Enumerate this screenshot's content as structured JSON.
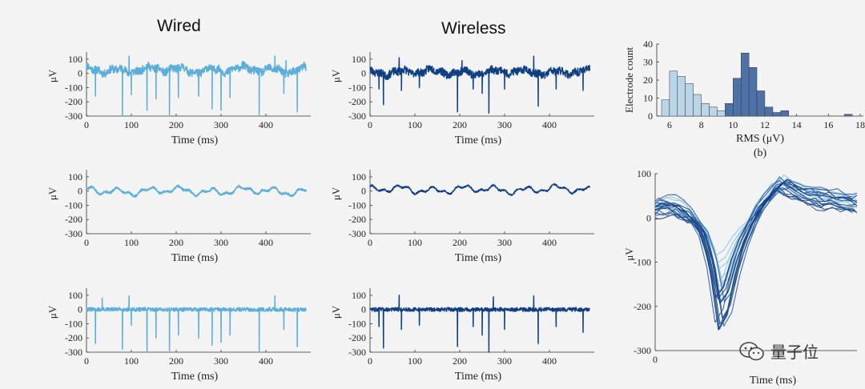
{
  "titles": {
    "wired": "Wired",
    "wireless": "Wireless"
  },
  "colors": {
    "wired": "#5aaed8",
    "wireless": "#0e3f82",
    "hist_light": "#b9d5e6",
    "hist_dark": "#4f72a6",
    "bg": "#f3f3f3"
  },
  "watermark": {
    "text": "量子位",
    "icon": "wechat-icon"
  },
  "chart_data": [
    {
      "id": "wired-raw",
      "type": "line",
      "xlabel": "Time (ms)",
      "ylabel": "μV",
      "xlim": [
        0,
        500
      ],
      "ylim": [
        -300,
        150
      ],
      "xticks": [
        "0",
        "100",
        "200",
        "300",
        "400"
      ],
      "yticks": [
        "100",
        "0",
        "-100",
        "-200",
        "-300"
      ],
      "seed": 11,
      "noise": 28,
      "wave": 30,
      "baseline": 25,
      "spikes": [
        [
          20,
          -160
        ],
        [
          80,
          -300
        ],
        [
          100,
          -150
        ],
        [
          135,
          -260
        ],
        [
          155,
          -180
        ],
        [
          185,
          -290
        ],
        [
          205,
          -170
        ],
        [
          250,
          -160
        ],
        [
          280,
          -250
        ],
        [
          300,
          -260
        ],
        [
          320,
          -170
        ],
        [
          385,
          -290
        ],
        [
          440,
          -140
        ],
        [
          470,
          -270
        ]
      ],
      "upspikes": [
        [
          95,
          120
        ],
        [
          420,
          120
        ],
        [
          445,
          90
        ]
      ]
    },
    {
      "id": "wireless-raw",
      "type": "line",
      "xlabel": "Time (ms)",
      "ylabel": "μV",
      "xlim": [
        0,
        500
      ],
      "ylim": [
        -300,
        150
      ],
      "xticks": [
        "0",
        "100",
        "200",
        "300",
        "400"
      ],
      "yticks": [
        "100",
        "0",
        "-100",
        "-200",
        "-300"
      ],
      "seed": 23,
      "noise": 28,
      "wave": 26,
      "baseline": 10,
      "spikes": [
        [
          20,
          -110
        ],
        [
          30,
          -220
        ],
        [
          70,
          -120
        ],
        [
          110,
          -100
        ],
        [
          195,
          -270
        ],
        [
          230,
          -110
        ],
        [
          250,
          -140
        ],
        [
          265,
          -280
        ],
        [
          300,
          -110
        ],
        [
          375,
          -230
        ],
        [
          415,
          -110
        ],
        [
          475,
          -120
        ]
      ],
      "upspikes": [
        [
          65,
          110
        ],
        [
          205,
          90
        ],
        [
          365,
          120
        ]
      ]
    },
    {
      "id": "wired-lfp",
      "type": "line",
      "xlabel": "Time (ms)",
      "ylabel": "μV",
      "xlim": [
        0,
        500
      ],
      "ylim": [
        -300,
        150
      ],
      "xticks": [
        "0",
        "100",
        "200",
        "300",
        "400"
      ],
      "yticks": [
        "100",
        "0",
        "-100",
        "-200",
        "-300"
      ],
      "seed": 5,
      "noise": 8,
      "wave": 35,
      "baseline": 0,
      "spikes": [],
      "upspikes": []
    },
    {
      "id": "wireless-lfp",
      "type": "line",
      "xlabel": "Time (ms)",
      "ylabel": "μV",
      "xlim": [
        0,
        500
      ],
      "ylim": [
        -300,
        150
      ],
      "xticks": [
        "0",
        "100",
        "200",
        "300",
        "400"
      ],
      "yticks": [
        "100",
        "0",
        "-100",
        "-200",
        "-300"
      ],
      "seed": 9,
      "noise": 6,
      "wave": 35,
      "baseline": 10,
      "spikes": [],
      "upspikes": []
    },
    {
      "id": "wired-spikes",
      "type": "line",
      "xlabel": "Time (ms)",
      "ylabel": "μV",
      "xlim": [
        0,
        500
      ],
      "ylim": [
        -300,
        150
      ],
      "xticks": [
        "0",
        "100",
        "200",
        "300",
        "400"
      ],
      "yticks": [
        "100",
        "0",
        "-100",
        "-200",
        "-300"
      ],
      "seed": 31,
      "noise": 14,
      "wave": 0,
      "baseline": 0,
      "spikes": [
        [
          20,
          -240
        ],
        [
          80,
          -280
        ],
        [
          100,
          -110
        ],
        [
          135,
          -300
        ],
        [
          155,
          -200
        ],
        [
          185,
          -290
        ],
        [
          205,
          -180
        ],
        [
          250,
          -200
        ],
        [
          280,
          -250
        ],
        [
          300,
          -230
        ],
        [
          320,
          -180
        ],
        [
          385,
          -300
        ],
        [
          440,
          -140
        ],
        [
          470,
          -260
        ]
      ],
      "upspikes": [
        [
          35,
          80
        ],
        [
          95,
          95
        ],
        [
          420,
          95
        ]
      ]
    },
    {
      "id": "wireless-spikes",
      "type": "line",
      "xlabel": "Time (ms)",
      "ylabel": "μV",
      "xlim": [
        0,
        500
      ],
      "ylim": [
        -300,
        150
      ],
      "xticks": [
        "0",
        "100",
        "200",
        "300",
        "400"
      ],
      "yticks": [
        "100",
        "0",
        "-100",
        "-200",
        "-300"
      ],
      "seed": 47,
      "noise": 14,
      "wave": 0,
      "baseline": 0,
      "spikes": [
        [
          20,
          -120
        ],
        [
          30,
          -270
        ],
        [
          70,
          -140
        ],
        [
          110,
          -110
        ],
        [
          195,
          -260
        ],
        [
          230,
          -120
        ],
        [
          250,
          -180
        ],
        [
          265,
          -300
        ],
        [
          300,
          -140
        ],
        [
          375,
          -240
        ],
        [
          415,
          -120
        ],
        [
          475,
          -160
        ]
      ],
      "upspikes": [
        [
          65,
          100
        ],
        [
          275,
          90
        ],
        [
          365,
          95
        ]
      ]
    },
    {
      "id": "rms-histogram",
      "type": "bar",
      "xlabel": "RMS (μV)",
      "ylabel": "Electrode count",
      "caption": "(b)",
      "xlim": [
        5.2,
        18.2
      ],
      "ylim": [
        0,
        40
      ],
      "xticks": [
        "6",
        "8",
        "10",
        "12",
        "14",
        "16",
        "18"
      ],
      "yticks": [
        "40",
        "30",
        "20",
        "10",
        "0"
      ],
      "series": [
        {
          "name": "wired",
          "bin_width": 0.5,
          "x": [
            5.75,
            6.25,
            6.75,
            7.25,
            7.75,
            8.25,
            8.75,
            9.25,
            9.75
          ],
          "values": [
            9,
            25,
            22,
            18,
            12,
            7,
            5,
            3,
            1
          ]
        },
        {
          "name": "wireless",
          "bin_width": 0.5,
          "x": [
            9.75,
            10.25,
            10.75,
            11.25,
            11.75,
            12.25,
            12.75,
            13.25,
            17.25
          ],
          "values": [
            7,
            21,
            35,
            27,
            14,
            5,
            2,
            3,
            1
          ]
        }
      ]
    },
    {
      "id": "spike-waveforms",
      "type": "line",
      "xlabel": "Time (ms)",
      "ylabel": "μV",
      "xlim": [
        0,
        2.5
      ],
      "ylim": [
        -300,
        100
      ],
      "xticks": [
        "0"
      ],
      "yticks": [
        "100",
        "0",
        "-100",
        "-200",
        "-300"
      ],
      "n_light": 8,
      "n_dark": 14,
      "template": {
        "x": [
          0,
          0.1,
          0.2,
          0.3,
          0.4,
          0.5,
          0.6,
          0.7,
          0.8,
          0.9,
          1.0,
          1.1,
          1.2,
          1.3,
          1.4,
          1.5,
          1.6,
          1.7,
          1.8,
          1.9,
          2.0,
          2.1,
          2.2,
          2.3,
          2.4,
          2.5
        ],
        "y": [
          20,
          25,
          25,
          18,
          5,
          -10,
          -40,
          -110,
          -230,
          -200,
          -120,
          -60,
          -15,
          20,
          45,
          65,
          72,
          65,
          55,
          50,
          45,
          42,
          40,
          35,
          32,
          30
        ]
      },
      "seed": 77
    }
  ]
}
